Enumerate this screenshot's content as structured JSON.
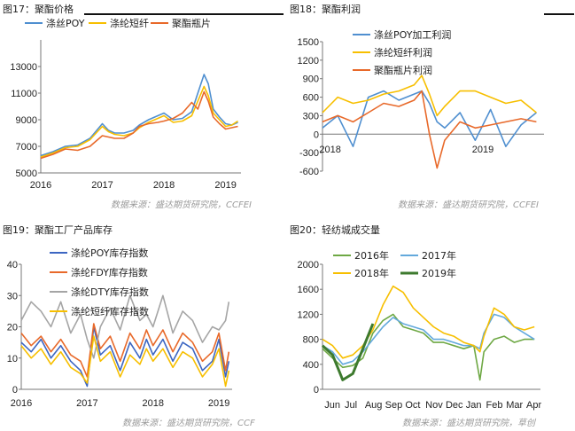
{
  "panels": [
    {
      "title": "图17：聚酯价格",
      "source": "数据来源：盛达期货研究院，CCFEI"
    },
    {
      "title": "图18：聚酯利润",
      "source": "数据来源：盛达期货研究院，CCFEI"
    },
    {
      "title": "图19：聚酯工厂产品库存",
      "source": "数据来源：盛达期货研究院，CCF"
    },
    {
      "title": "图20：轻纺城成交量",
      "source": "数据来源：盛达期货研究院，草创"
    }
  ],
  "colors": {
    "blue": "#4f8fd0",
    "yellow": "#f7bf00",
    "orange": "#e8692a",
    "gray": "#a5a5a5",
    "darkblue": "#3c66c2",
    "green": "#6ea844",
    "lightblue": "#63a9dc",
    "darkgreen": "#3d7a2e"
  },
  "chart_data": [
    {
      "type": "line",
      "title": "图17：聚酯价格",
      "ylim": [
        5000,
        15000
      ],
      "yticks": [
        "5000",
        "7000",
        "9000",
        "11000",
        "13000"
      ],
      "xticks": [
        "2016",
        "2017",
        "2018",
        "2019"
      ],
      "x": [
        2016.0,
        2016.2,
        2016.4,
        2016.6,
        2016.8,
        2017.0,
        2017.1,
        2017.2,
        2017.35,
        2017.5,
        2017.6,
        2017.75,
        2017.9,
        2018.0,
        2018.15,
        2018.3,
        2018.45,
        2018.55,
        2018.65,
        2018.72,
        2018.8,
        2018.9,
        2019.0,
        2019.1,
        2019.2
      ],
      "series": [
        {
          "name": "涤丝POY",
          "color": "#4f8fd0",
          "values": [
            6300,
            6600,
            7000,
            7100,
            7600,
            8700,
            8200,
            8000,
            8000,
            8200,
            8600,
            9000,
            9300,
            9500,
            9000,
            9100,
            9600,
            11000,
            12400,
            11700,
            9800,
            9200,
            8700,
            8600,
            8800
          ]
        },
        {
          "name": "涤纶短纤",
          "color": "#f7bf00",
          "values": [
            6200,
            6500,
            6900,
            7000,
            7500,
            8500,
            8100,
            7900,
            7800,
            8000,
            8400,
            8800,
            9100,
            9300,
            8800,
            8900,
            9300,
            10400,
            11500,
            10800,
            9500,
            9000,
            8500,
            8600,
            8900
          ]
        },
        {
          "name": "聚酯瓶片",
          "color": "#e8692a",
          "values": [
            6100,
            6400,
            6800,
            6700,
            7000,
            7800,
            7700,
            7600,
            7600,
            8000,
            8500,
            8700,
            8800,
            8900,
            9100,
            9500,
            10300,
            9800,
            11100,
            10400,
            9200,
            8700,
            8300,
            8400,
            8500
          ]
        }
      ]
    },
    {
      "type": "line",
      "title": "图18：聚酯利润",
      "ylim": [
        -600,
        1500
      ],
      "yticks": [
        "-600",
        "-300",
        "0",
        "300",
        "600",
        "900",
        "1200",
        "1500"
      ],
      "xticks": [
        "2018",
        "2019"
      ],
      "x": [
        2018.0,
        2018.1,
        2018.2,
        2018.3,
        2018.4,
        2018.5,
        2018.6,
        2018.65,
        2018.7,
        2018.75,
        2018.8,
        2018.9,
        2019.0,
        2019.1,
        2019.2,
        2019.3,
        2019.4
      ],
      "series": [
        {
          "name": "涤丝POY加工利润",
          "color": "#4f8fd0",
          "values": [
            100,
            300,
            -200,
            600,
            700,
            550,
            650,
            700,
            500,
            200,
            100,
            350,
            -100,
            400,
            -200,
            150,
            350
          ]
        },
        {
          "name": "涤纶短纤利润",
          "color": "#f7bf00",
          "values": [
            350,
            600,
            500,
            550,
            650,
            700,
            800,
            950,
            650,
            300,
            450,
            700,
            700,
            600,
            500,
            550,
            350
          ]
        },
        {
          "name": "聚酯瓶片利润",
          "color": "#e8692a",
          "values": [
            200,
            300,
            200,
            350,
            500,
            450,
            550,
            700,
            0,
            -550,
            -100,
            200,
            100,
            150,
            200,
            250,
            200
          ]
        }
      ]
    },
    {
      "type": "line",
      "title": "图19：聚酯工厂产品库存",
      "ylim": [
        0,
        40
      ],
      "yticks": [
        "0",
        "10",
        "20",
        "30",
        "40"
      ],
      "xticks": [
        "2016",
        "2017",
        "2018",
        "2019"
      ],
      "x": [
        2016.0,
        2016.15,
        2016.3,
        2016.45,
        2016.6,
        2016.75,
        2016.9,
        2017.0,
        2017.1,
        2017.2,
        2017.35,
        2017.5,
        2017.65,
        2017.8,
        2017.9,
        2018.0,
        2018.15,
        2018.3,
        2018.45,
        2018.6,
        2018.75,
        2018.9,
        2019.0,
        2019.1,
        2019.15
      ],
      "series": [
        {
          "name": "涤纶POY库存指数",
          "color": "#3c66c2",
          "values": [
            15,
            12,
            16,
            10,
            14,
            9,
            6,
            1,
            20,
            11,
            14,
            6,
            15,
            10,
            16,
            11,
            16,
            9,
            15,
            13,
            6,
            9,
            16,
            4,
            9
          ]
        },
        {
          "name": "涤纶FDY库存指数",
          "color": "#e8692a",
          "values": [
            18,
            14,
            17,
            12,
            16,
            11,
            9,
            4,
            21,
            13,
            17,
            9,
            18,
            13,
            19,
            14,
            19,
            12,
            18,
            15,
            9,
            12,
            18,
            6,
            12
          ]
        },
        {
          "name": "涤纶DTY库存指数",
          "color": "#a5a5a5",
          "values": [
            22,
            28,
            25,
            20,
            28,
            18,
            24,
            16,
            10,
            20,
            26,
            19,
            30,
            22,
            24,
            20,
            30,
            18,
            25,
            22,
            15,
            20,
            19,
            22,
            28
          ]
        },
        {
          "name": "涤纶短纤库存指数",
          "color": "#f7bf00",
          "values": [
            14,
            10,
            13,
            8,
            12,
            7,
            5,
            2,
            17,
            9,
            12,
            4,
            11,
            8,
            13,
            9,
            13,
            7,
            12,
            10,
            4,
            8,
            13,
            1,
            6
          ]
        }
      ]
    },
    {
      "type": "line",
      "title": "图20：轻纺城成交量",
      "ylim": [
        0,
        2000
      ],
      "yticks": [
        "0",
        "400",
        "800",
        "1200",
        "1600",
        "2000"
      ],
      "xticks": [
        "Jun",
        "Jul",
        "Aug",
        "Sep",
        "Oct",
        "Nov",
        "Dec",
        "Jan",
        "Feb",
        "Mar",
        "Apr"
      ],
      "x": [
        0,
        0.5,
        1.0,
        1.5,
        2.0,
        2.5,
        3.0,
        3.5,
        4.0,
        4.5,
        5.0,
        5.5,
        6.0,
        6.5,
        7.0,
        7.5,
        7.8,
        8.0,
        8.5,
        9.0,
        9.5,
        10.0,
        10.5
      ],
      "series": [
        {
          "name": "2016年",
          "color": "#6ea844",
          "values": [
            650,
            500,
            350,
            380,
            500,
            900,
            1100,
            1200,
            1000,
            950,
            900,
            750,
            750,
            700,
            650,
            700,
            150,
            600,
            800,
            850,
            750,
            800,
            800
          ]
        },
        {
          "name": "2017年",
          "color": "#63a9dc",
          "values": [
            700,
            600,
            400,
            450,
            600,
            800,
            1000,
            1150,
            1050,
            1000,
            950,
            800,
            800,
            750,
            700,
            700,
            650,
            900,
            1200,
            1150,
            1000,
            900,
            800
          ]
        },
        {
          "name": "2018年",
          "color": "#f7bf00",
          "values": [
            800,
            700,
            500,
            550,
            700,
            950,
            1350,
            1650,
            1550,
            1300,
            1150,
            1000,
            900,
            850,
            750,
            700,
            600,
            850,
            1300,
            1200,
            1000,
            950,
            1000
          ]
        },
        {
          "name": "2019年",
          "color": "#3d7a2e",
          "values": [
            700,
            550,
            150,
            250,
            650,
            1050,
            null,
            null,
            null,
            null,
            null,
            null,
            null,
            null,
            null,
            null,
            null,
            null,
            null,
            null,
            null,
            null,
            null
          ]
        }
      ]
    }
  ]
}
